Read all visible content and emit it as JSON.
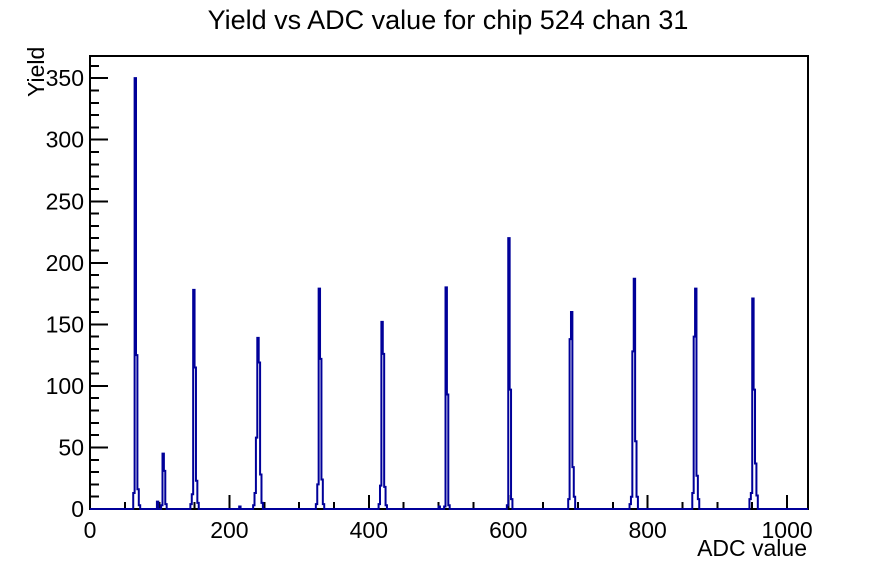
{
  "chart_data": {
    "type": "bar",
    "title": "Yield vs ADC value for chip 524 chan 31",
    "xlabel": "ADC value",
    "ylabel": "Yield",
    "xlim": [
      0,
      1030
    ],
    "ylim": [
      0,
      368
    ],
    "x_major_ticks": [
      0,
      200,
      400,
      600,
      800,
      1000
    ],
    "x_tick_labels": [
      "0",
      "200",
      "400",
      "600",
      "800",
      "1000"
    ],
    "x_minor_step": 50,
    "y_major_ticks": [
      0,
      50,
      100,
      150,
      200,
      250,
      300,
      350
    ],
    "y_tick_labels": [
      "0",
      "50",
      "100",
      "150",
      "200",
      "250",
      "300",
      "350"
    ],
    "y_minor_step": 10,
    "grid": false,
    "legend": "none",
    "line_color": "#000099",
    "axis_color": "#000000",
    "bins": [
      [
        62,
        64,
        13
      ],
      [
        64,
        66,
        350
      ],
      [
        66,
        68,
        125
      ],
      [
        68,
        70,
        16
      ],
      [
        70,
        72,
        3
      ],
      [
        96,
        98,
        6
      ],
      [
        102,
        104,
        3
      ],
      [
        104,
        106,
        45
      ],
      [
        106,
        108,
        31
      ],
      [
        108,
        110,
        4
      ],
      [
        144,
        146,
        4
      ],
      [
        146,
        148,
        12
      ],
      [
        148,
        150,
        178
      ],
      [
        150,
        152,
        115
      ],
      [
        152,
        154,
        23
      ],
      [
        154,
        156,
        5
      ],
      [
        214,
        216,
        2
      ],
      [
        234,
        236,
        3
      ],
      [
        236,
        238,
        13
      ],
      [
        238,
        240,
        58
      ],
      [
        240,
        242,
        139
      ],
      [
        242,
        244,
        119
      ],
      [
        244,
        246,
        28
      ],
      [
        246,
        248,
        5
      ],
      [
        324,
        326,
        4
      ],
      [
        326,
        328,
        20
      ],
      [
        328,
        330,
        179
      ],
      [
        330,
        332,
        122
      ],
      [
        332,
        334,
        24
      ],
      [
        334,
        336,
        4
      ],
      [
        414,
        416,
        4
      ],
      [
        416,
        418,
        19
      ],
      [
        418,
        420,
        152
      ],
      [
        420,
        422,
        126
      ],
      [
        422,
        424,
        18
      ],
      [
        424,
        426,
        3
      ],
      [
        500,
        502,
        2
      ],
      [
        508,
        510,
        2
      ],
      [
        510,
        512,
        180
      ],
      [
        512,
        514,
        93
      ],
      [
        514,
        516,
        3
      ],
      [
        598,
        600,
        3
      ],
      [
        600,
        602,
        220
      ],
      [
        602,
        604,
        97
      ],
      [
        604,
        606,
        8
      ],
      [
        686,
        688,
        8
      ],
      [
        688,
        690,
        138
      ],
      [
        690,
        692,
        160
      ],
      [
        692,
        694,
        34
      ],
      [
        694,
        696,
        10
      ],
      [
        774,
        776,
        4
      ],
      [
        776,
        778,
        10
      ],
      [
        778,
        780,
        128
      ],
      [
        780,
        782,
        187
      ],
      [
        782,
        784,
        55
      ],
      [
        784,
        786,
        10
      ],
      [
        864,
        866,
        13
      ],
      [
        866,
        868,
        140
      ],
      [
        868,
        870,
        179
      ],
      [
        870,
        872,
        27
      ],
      [
        872,
        874,
        8
      ],
      [
        946,
        948,
        8
      ],
      [
        948,
        950,
        13
      ],
      [
        950,
        952,
        171
      ],
      [
        952,
        954,
        97
      ],
      [
        954,
        956,
        37
      ],
      [
        956,
        958,
        11
      ]
    ]
  }
}
